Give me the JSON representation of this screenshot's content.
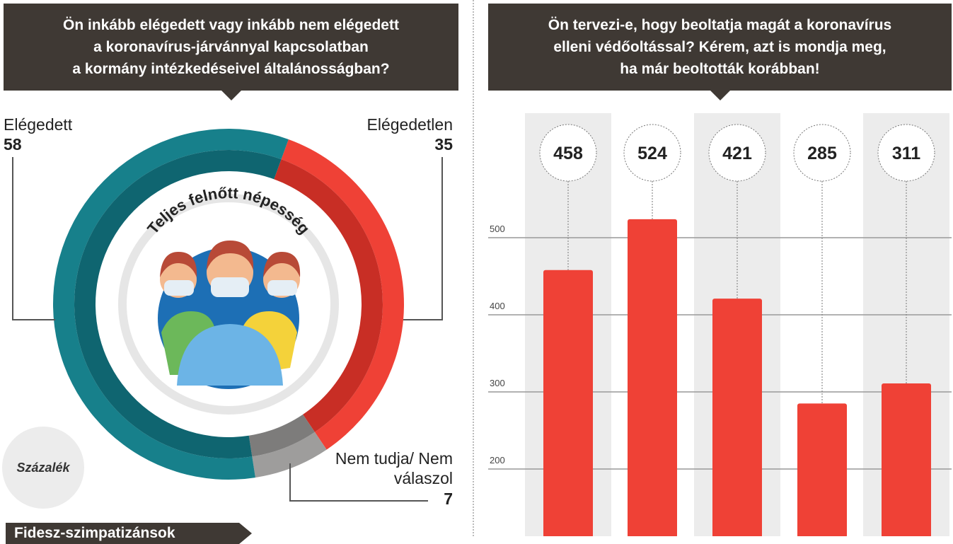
{
  "left": {
    "question": [
      "Ön inkább elégedett vagy inkább nem elégedett",
      "a koronavírus-járvánnyal kapcsolatban",
      "a kormány intézkedéseivel általánosságban?"
    ],
    "center_label": "Teljes felnőtt népesség",
    "unit_label": "Százalék",
    "next_section": "Fidesz-szimpatizánsok"
  },
  "right": {
    "question": [
      "Ön tervezi-e, hogy beoltatja magát a koronavírus",
      "elleni védőoltással? Kérem, azt is mondja meg,",
      "ha már beoltották korábban!"
    ]
  },
  "chart_data": [
    {
      "type": "pie",
      "donut": true,
      "unit": "Százalék",
      "slices": [
        {
          "name": "Elégedett",
          "value": 58,
          "color": "#17808b"
        },
        {
          "name": "Elégedetlen",
          "value": 35,
          "color": "#ef4136"
        },
        {
          "name": "Nem tudja/ Nem válaszol",
          "value": 7,
          "color": "#9e9d9c"
        }
      ]
    },
    {
      "type": "bar",
      "values": [
        458,
        524,
        421,
        285,
        311
      ],
      "data_labels": [
        "458",
        "524",
        "421",
        "285",
        "311"
      ],
      "yticks": [
        "500",
        "400",
        "300",
        "200"
      ],
      "grid": true,
      "bar_color": "#ef4136"
    }
  ]
}
